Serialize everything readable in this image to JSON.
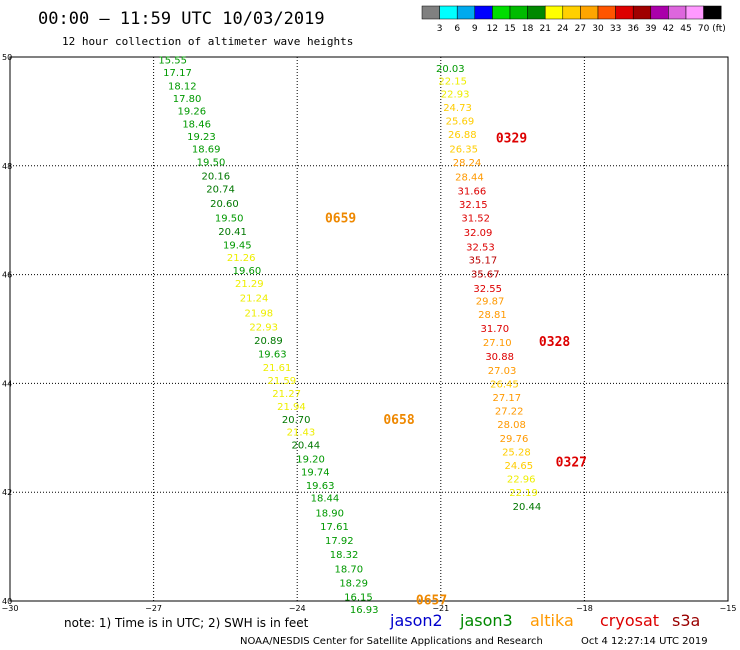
{
  "header": {
    "title": "00:00 – 11:59 UTC 10/03/2019",
    "subtitle": "12 hour collection of altimeter wave heights"
  },
  "colorbar": {
    "labels": [
      "3",
      "6",
      "9",
      "12",
      "15",
      "18",
      "21",
      "24",
      "27",
      "30",
      "33",
      "36",
      "39",
      "42",
      "45",
      "70"
    ],
    "unit": "(ft)",
    "colors": [
      "#808080",
      "#00ffff",
      "#00aaee",
      "#0000ff",
      "#00dd00",
      "#00bb00",
      "#008800",
      "#ffff00",
      "#ffd000",
      "#ffa500",
      "#ff5500",
      "#dd0000",
      "#a00000",
      "#aa00aa",
      "#dd66dd",
      "#ff99ff",
      "#000000"
    ]
  },
  "footer": {
    "note": "note:  1) Time is in UTC;  2) SWH is in feet",
    "credit": "NOAA/NESDIS Center for Satellite Applications and Research",
    "timestamp": "Oct  4 12:27:14 UTC 2019",
    "satellites": [
      {
        "name": "jason2",
        "color": "#0000cc"
      },
      {
        "name": "jason3",
        "color": "#008800"
      },
      {
        "name": "altika",
        "color": "#ff9900"
      },
      {
        "name": "cryosat",
        "color": "#dd0000"
      },
      {
        "name": "s3a",
        "color": "#990000"
      }
    ]
  },
  "chart_data": {
    "type": "scatter",
    "title": "00:00 – 11:59 UTC 10/03/2019",
    "subtitle": "12 hour collection of altimeter wave heights",
    "xlim": [
      -30,
      -15
    ],
    "ylim": [
      40,
      50
    ],
    "x_ticks": [
      -30,
      -27,
      -24,
      -21,
      -18,
      -15
    ],
    "x_tick_labels": [
      "−30",
      "−27",
      "−24",
      "−21",
      "−18",
      "−15"
    ],
    "y_ticks": [
      40,
      42,
      44,
      46,
      48,
      50
    ],
    "y_tick_labels": [
      "40",
      "42",
      "44",
      "46",
      "48",
      "50"
    ],
    "grid": true,
    "units": "ft",
    "tracks": [
      {
        "satellite": "jason3",
        "pass_labels": [
          {
            "text": "0659",
            "color": "#ee8800",
            "lon": -23.42,
            "lat": 47.05
          },
          {
            "text": "0658",
            "color": "#ee8800",
            "lon": -22.2,
            "lat": 43.35
          },
          {
            "text": "0657",
            "color": "#ee8800",
            "lon": -21.52,
            "lat": 40.03
          }
        ],
        "points": [
          {
            "lon": -26.9,
            "lat": 49.95,
            "swh": "15.55",
            "color": "#009900"
          },
          {
            "lon": -26.8,
            "lat": 49.72,
            "swh": "17.17",
            "color": "#009900"
          },
          {
            "lon": -26.7,
            "lat": 49.48,
            "swh": "18.12",
            "color": "#009900"
          },
          {
            "lon": -26.6,
            "lat": 49.25,
            "swh": "17.80",
            "color": "#009900"
          },
          {
            "lon": -26.5,
            "lat": 49.02,
            "swh": "19.26",
            "color": "#009900"
          },
          {
            "lon": -26.4,
            "lat": 48.78,
            "swh": "18.46",
            "color": "#009900"
          },
          {
            "lon": -26.3,
            "lat": 48.55,
            "swh": "19.23",
            "color": "#009900"
          },
          {
            "lon": -26.2,
            "lat": 48.32,
            "swh": "18.69",
            "color": "#009900"
          },
          {
            "lon": -26.1,
            "lat": 48.08,
            "swh": "19.50",
            "color": "#009900"
          },
          {
            "lon": -26.0,
            "lat": 47.82,
            "swh": "20.16",
            "color": "#007700"
          },
          {
            "lon": -25.9,
            "lat": 47.58,
            "swh": "20.74",
            "color": "#007700"
          },
          {
            "lon": -25.82,
            "lat": 47.32,
            "swh": "20.60",
            "color": "#007700"
          },
          {
            "lon": -25.72,
            "lat": 47.05,
            "swh": "19.50",
            "color": "#009900"
          },
          {
            "lon": -25.65,
            "lat": 46.8,
            "swh": "20.41",
            "color": "#007700"
          },
          {
            "lon": -25.55,
            "lat": 46.55,
            "swh": "19.45",
            "color": "#009900"
          },
          {
            "lon": -25.47,
            "lat": 46.32,
            "swh": "21.26",
            "color": "#eeee00"
          },
          {
            "lon": -25.35,
            "lat": 46.08,
            "swh": "19.60",
            "color": "#009900"
          },
          {
            "lon": -25.3,
            "lat": 45.85,
            "swh": "21.29",
            "color": "#eeee00"
          },
          {
            "lon": -25.2,
            "lat": 45.58,
            "swh": "21.24",
            "color": "#eeee00"
          },
          {
            "lon": -25.1,
            "lat": 45.3,
            "swh": "21.98",
            "color": "#eeee00"
          },
          {
            "lon": -25.0,
            "lat": 45.05,
            "swh": "22.93",
            "color": "#eeee00"
          },
          {
            "lon": -24.9,
            "lat": 44.8,
            "swh": "20.89",
            "color": "#007700"
          },
          {
            "lon": -24.82,
            "lat": 44.55,
            "swh": "19.63",
            "color": "#009900"
          },
          {
            "lon": -24.72,
            "lat": 44.3,
            "swh": "21.61",
            "color": "#eeee00"
          },
          {
            "lon": -24.62,
            "lat": 44.06,
            "swh": "21.59",
            "color": "#eeee00"
          },
          {
            "lon": -24.52,
            "lat": 43.82,
            "swh": "21.27",
            "color": "#eeee00"
          },
          {
            "lon": -24.42,
            "lat": 43.58,
            "swh": "21.94",
            "color": "#eeee00"
          },
          {
            "lon": -24.32,
            "lat": 43.35,
            "swh": "20.70",
            "color": "#007700"
          },
          {
            "lon": -24.22,
            "lat": 43.12,
            "swh": "21.43",
            "color": "#eeee00"
          },
          {
            "lon": -24.12,
            "lat": 42.88,
            "swh": "20.44",
            "color": "#007700"
          },
          {
            "lon": -24.02,
            "lat": 42.62,
            "swh": "19.20",
            "color": "#009900"
          },
          {
            "lon": -23.92,
            "lat": 42.38,
            "swh": "19.74",
            "color": "#009900"
          },
          {
            "lon": -23.82,
            "lat": 42.13,
            "swh": "19.63",
            "color": "#009900"
          },
          {
            "lon": -23.72,
            "lat": 41.9,
            "swh": "18.44",
            "color": "#009900"
          },
          {
            "lon": -23.62,
            "lat": 41.63,
            "swh": "18.90",
            "color": "#009900"
          },
          {
            "lon": -23.52,
            "lat": 41.38,
            "swh": "17.61",
            "color": "#009900"
          },
          {
            "lon": -23.42,
            "lat": 41.12,
            "swh": "17.92",
            "color": "#009900"
          },
          {
            "lon": -23.32,
            "lat": 40.86,
            "swh": "18.32",
            "color": "#009900"
          },
          {
            "lon": -23.22,
            "lat": 40.6,
            "swh": "18.70",
            "color": "#009900"
          },
          {
            "lon": -23.12,
            "lat": 40.34,
            "swh": "18.29",
            "color": "#009900"
          },
          {
            "lon": -23.02,
            "lat": 40.08,
            "swh": "16.15",
            "color": "#009900"
          },
          {
            "lon": -22.9,
            "lat": 39.85,
            "swh": "16.93",
            "color": "#009900"
          }
        ]
      },
      {
        "satellite": "altika",
        "pass_labels": [
          {
            "text": "0329",
            "color": "#dd0000",
            "lon": -19.85,
            "lat": 48.52
          },
          {
            "text": "0328",
            "color": "#dd0000",
            "lon": -18.95,
            "lat": 44.78
          },
          {
            "text": "0327",
            "color": "#dd0000",
            "lon": -18.6,
            "lat": 42.56
          }
        ],
        "points": [
          {
            "lon": -21.1,
            "lat": 49.8,
            "swh": "20.03",
            "color": "#009900"
          },
          {
            "lon": -21.05,
            "lat": 49.57,
            "swh": "22.15",
            "color": "#eeee00"
          },
          {
            "lon": -21.0,
            "lat": 49.33,
            "swh": "22.93",
            "color": "#eeee00"
          },
          {
            "lon": -20.95,
            "lat": 49.08,
            "swh": "24.73",
            "color": "#ffcc00"
          },
          {
            "lon": -20.9,
            "lat": 48.83,
            "swh": "25.69",
            "color": "#ffcc00"
          },
          {
            "lon": -20.85,
            "lat": 48.58,
            "swh": "26.88",
            "color": "#ffcc00"
          },
          {
            "lon": -20.82,
            "lat": 48.32,
            "swh": "26.35",
            "color": "#ffcc00"
          },
          {
            "lon": -20.75,
            "lat": 48.07,
            "swh": "28.24",
            "color": "#ff9900"
          },
          {
            "lon": -20.7,
            "lat": 47.8,
            "swh": "28.44",
            "color": "#ff9900"
          },
          {
            "lon": -20.65,
            "lat": 47.55,
            "swh": "31.66",
            "color": "#dd0000"
          },
          {
            "lon": -20.62,
            "lat": 47.3,
            "swh": "32.15",
            "color": "#dd0000"
          },
          {
            "lon": -20.57,
            "lat": 47.05,
            "swh": "31.52",
            "color": "#dd0000"
          },
          {
            "lon": -20.52,
            "lat": 46.78,
            "swh": "32.09",
            "color": "#dd0000"
          },
          {
            "lon": -20.47,
            "lat": 46.52,
            "swh": "32.53",
            "color": "#dd0000"
          },
          {
            "lon": -20.42,
            "lat": 46.28,
            "swh": "35.17",
            "color": "#bb0000"
          },
          {
            "lon": -20.37,
            "lat": 46.02,
            "swh": "35.67",
            "color": "#bb0000"
          },
          {
            "lon": -20.32,
            "lat": 45.75,
            "swh": "32.55",
            "color": "#dd0000"
          },
          {
            "lon": -20.27,
            "lat": 45.52,
            "swh": "29.87",
            "color": "#ff9900"
          },
          {
            "lon": -20.22,
            "lat": 45.28,
            "swh": "28.81",
            "color": "#ff9900"
          },
          {
            "lon": -20.17,
            "lat": 45.02,
            "swh": "31.70",
            "color": "#dd0000"
          },
          {
            "lon": -20.12,
            "lat": 44.76,
            "swh": "27.10",
            "color": "#ff9900"
          },
          {
            "lon": -20.07,
            "lat": 44.5,
            "swh": "30.88",
            "color": "#dd0000"
          },
          {
            "lon": -20.02,
            "lat": 44.25,
            "swh": "27.03",
            "color": "#ff9900"
          },
          {
            "lon": -19.97,
            "lat": 44.0,
            "swh": "26.45",
            "color": "#ffcc00"
          },
          {
            "lon": -19.92,
            "lat": 43.75,
            "swh": "27.17",
            "color": "#ff9900"
          },
          {
            "lon": -19.87,
            "lat": 43.5,
            "swh": "27.22",
            "color": "#ff9900"
          },
          {
            "lon": -19.82,
            "lat": 43.25,
            "swh": "28.08",
            "color": "#ff9900"
          },
          {
            "lon": -19.77,
            "lat": 43.0,
            "swh": "29.76",
            "color": "#ff9900"
          },
          {
            "lon": -19.72,
            "lat": 42.75,
            "swh": "25.28",
            "color": "#ffcc00"
          },
          {
            "lon": -19.67,
            "lat": 42.5,
            "swh": "24.65",
            "color": "#ffcc00"
          },
          {
            "lon": -19.62,
            "lat": 42.25,
            "swh": "22.96",
            "color": "#eeee00"
          },
          {
            "lon": -19.57,
            "lat": 42.0,
            "swh": "22.19",
            "color": "#eeee00"
          },
          {
            "lon": -19.5,
            "lat": 41.75,
            "swh": "20.44",
            "color": "#007700"
          }
        ]
      }
    ]
  }
}
